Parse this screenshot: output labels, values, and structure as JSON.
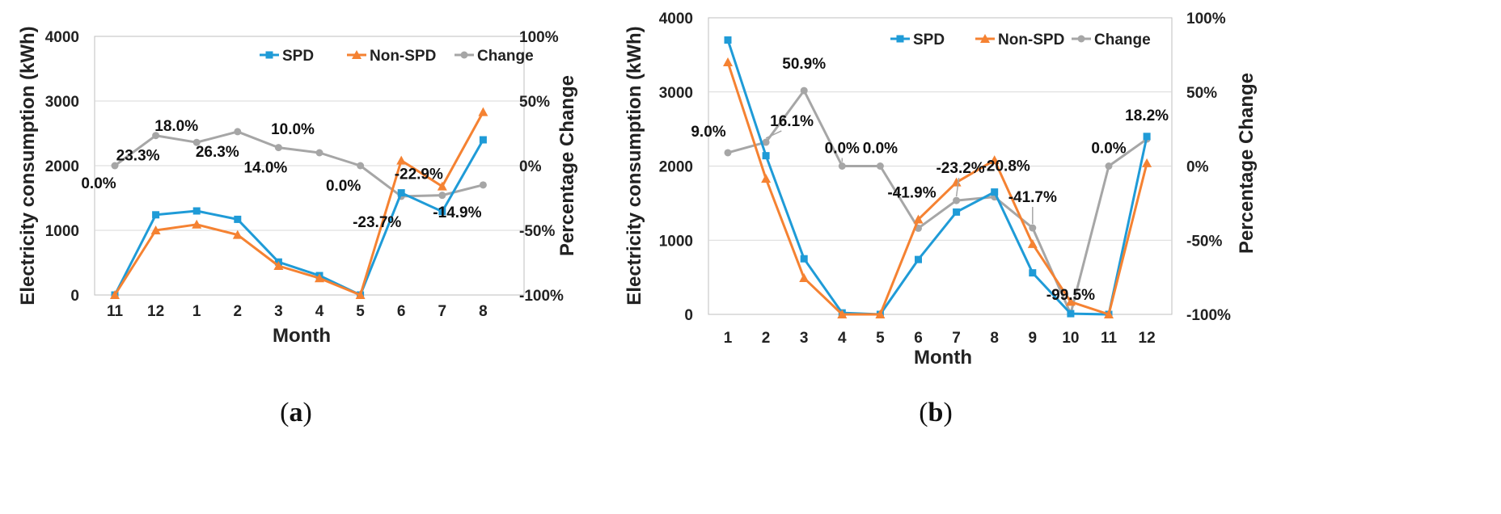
{
  "colors": {
    "spd": "#1f9bd7",
    "non_spd": "#f58232",
    "change": "#a6a6a6",
    "grid": "#d9d9d9",
    "frame": "#bfbfbf"
  },
  "chart_data": [
    {
      "id": "a",
      "type": "line",
      "caption_letter": "a",
      "categories": [
        "11",
        "12",
        "1",
        "2",
        "3",
        "4",
        "5",
        "6",
        "7",
        "8"
      ],
      "series": [
        {
          "name": "SPD",
          "axis": "left",
          "marker": "square",
          "values": [
            0,
            1240,
            1300,
            1170,
            510,
            300,
            0,
            1580,
            1290,
            2400
          ]
        },
        {
          "name": "Non-SPD",
          "axis": "left",
          "marker": "triangle",
          "values": [
            0,
            1000,
            1090,
            930,
            450,
            260,
            0,
            2080,
            1680,
            2830
          ]
        },
        {
          "name": "Change",
          "axis": "right",
          "marker": "circle",
          "values": [
            0.0,
            23.3,
            18.0,
            26.3,
            14.0,
            10.0,
            0.0,
            -23.7,
            -22.9,
            -14.9
          ]
        }
      ],
      "data_labels": [
        "0.0%",
        "23.3%",
        "18.0%",
        "26.3%",
        "14.0%",
        "10.0%",
        "0.0%",
        "-23.7%",
        "-22.9%",
        "-14.9%"
      ],
      "xlabel": "Month",
      "ylabel": "Electricity consumption (kWh)",
      "y2label": "Percentage Change",
      "ylim": [
        0,
        4000
      ],
      "y2lim": [
        -100,
        100
      ],
      "yticks": [
        0,
        1000,
        2000,
        3000,
        4000
      ],
      "ytick_labels": [
        "0",
        "1000",
        "2000",
        "3000",
        "4000"
      ],
      "y2ticks": [
        -100,
        -50,
        0,
        50,
        100
      ],
      "y2tick_labels": [
        "-100%",
        "-50%",
        "0%",
        "50%",
        "100%"
      ],
      "legend": [
        "SPD",
        "Non-SPD",
        "Change"
      ],
      "legend_position": "top-right",
      "grid": true
    },
    {
      "id": "b",
      "type": "line",
      "caption_letter": "b",
      "categories": [
        "1",
        "2",
        "3",
        "4",
        "5",
        "6",
        "7",
        "8",
        "9",
        "10",
        "11",
        "12"
      ],
      "series": [
        {
          "name": "SPD",
          "axis": "left",
          "marker": "square",
          "values": [
            3700,
            2140,
            750,
            20,
            0,
            740,
            1380,
            1650,
            560,
            10,
            0,
            2400
          ]
        },
        {
          "name": "Non-SPD",
          "axis": "left",
          "marker": "triangle",
          "values": [
            3400,
            1830,
            490,
            0,
            0,
            1280,
            1780,
            2080,
            950,
            170,
            0,
            2040
          ]
        },
        {
          "name": "Change",
          "axis": "right",
          "marker": "circle",
          "values": [
            9.0,
            16.1,
            50.9,
            0.0,
            0.0,
            -41.9,
            -23.2,
            -20.8,
            -41.7,
            -99.5,
            0.0,
            18.2
          ]
        }
      ],
      "data_labels": [
        "9.0%",
        "16.1%",
        "50.9%",
        "0.0%",
        "0.0%",
        "-41.9%",
        "-23.2%",
        "-20.8%",
        "-41.7%",
        "-99.5%",
        "0.0%",
        "18.2%"
      ],
      "xlabel": "Month",
      "ylabel": "Electricity consumption (kWh)",
      "y2label": "Percentage Change",
      "ylim": [
        0,
        4000
      ],
      "y2lim": [
        -100,
        100
      ],
      "yticks": [
        0,
        1000,
        2000,
        3000,
        4000
      ],
      "ytick_labels": [
        "0",
        "1000",
        "2000",
        "3000",
        "4000"
      ],
      "y2ticks": [
        -100,
        -50,
        0,
        50,
        100
      ],
      "y2tick_labels": [
        "-100%",
        "-50%",
        "0%",
        "50%",
        "100%"
      ],
      "legend": [
        "SPD",
        "Non-SPD",
        "Change"
      ],
      "legend_position": "top-right",
      "grid": true
    }
  ]
}
